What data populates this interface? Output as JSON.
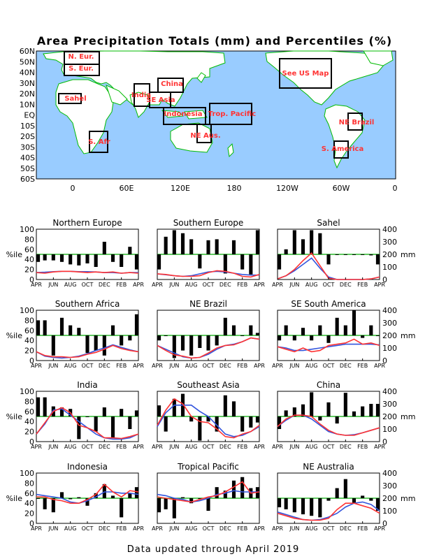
{
  "title": "Area Precipitation Totals (mm) and Percentiles (%)",
  "footer": "Data updated through April 2019",
  "map": {
    "lat_labels": [
      "60N",
      "50N",
      "40N",
      "30N",
      "20N",
      "10N",
      "EQ",
      "10S",
      "20S",
      "30S",
      "40S",
      "50S",
      "60S"
    ],
    "lon_labels": [
      "0",
      "60E",
      "120E",
      "180",
      "120W",
      "60W",
      "0"
    ],
    "regions": [
      "N. Eur.",
      "S. Eur.",
      "Sahel",
      "S. Afr",
      "India",
      "China",
      "SE Asia",
      "Indonesia",
      "Trop. Pacific",
      "NE Aus.",
      "See US Map",
      "NE Brazil",
      "S. America"
    ],
    "colors": {
      "ocean": "#99ccff",
      "land": "#ffffff",
      "coast": "#00bb00",
      "box": "#000000",
      "label": "#ff3333"
    }
  },
  "chart_axis": {
    "months": [
      "APR",
      "JUN",
      "AUG",
      "OCT",
      "DEC",
      "FEB",
      "APR"
    ],
    "pct_ticks": [
      "0",
      "20",
      "40",
      "60",
      "80",
      "100"
    ],
    "mm_ticks": [
      "0",
      "100",
      "200",
      "300",
      "400"
    ],
    "pct_label": "%ile",
    "mm_label": "mm",
    "colors": {
      "bars": "#000000",
      "median_line": "#00aa00",
      "observed": "#ff3333",
      "normal": "#3355dd"
    }
  },
  "chart_data": [
    {
      "type": "bar",
      "title": "Northern Europe",
      "ylim": [
        0,
        100
      ],
      "y2lim": [
        0,
        400
      ],
      "percentile": [
        35,
        38,
        38,
        35,
        30,
        28,
        32,
        25,
        75,
        35,
        25,
        65,
        20
      ],
      "observed_mm": [
        55,
        50,
        60,
        65,
        65,
        60,
        55,
        60,
        55,
        60,
        50,
        55,
        50
      ],
      "normal_mm": [
        55,
        58,
        62,
        65,
        65,
        62,
        62,
        60,
        55,
        55,
        50,
        55,
        55
      ]
    },
    {
      "type": "bar",
      "title": "Southern Europe",
      "ylim": [
        0,
        100
      ],
      "y2lim": [
        0,
        400
      ],
      "percentile": [
        20,
        85,
        98,
        92,
        80,
        22,
        78,
        80,
        12,
        78,
        20,
        10,
        98
      ],
      "observed_mm": [
        45,
        40,
        30,
        25,
        25,
        30,
        55,
        70,
        65,
        50,
        25,
        20,
        40
      ],
      "normal_mm": [
        45,
        38,
        30,
        25,
        30,
        45,
        60,
        65,
        60,
        50,
        40,
        35,
        35
      ]
    },
    {
      "type": "bar",
      "title": "Sahel",
      "ylim": [
        0,
        100
      ],
      "y2lim": [
        0,
        400
      ],
      "percentile": [
        20,
        60,
        98,
        80,
        98,
        92,
        30,
        50,
        50,
        50,
        50,
        48,
        30
      ],
      "observed_mm": [
        5,
        30,
        80,
        150,
        210,
        110,
        10,
        0,
        0,
        0,
        0,
        5,
        20
      ],
      "normal_mm": [
        5,
        30,
        70,
        120,
        170,
        90,
        20,
        0,
        0,
        0,
        0,
        5,
        20
      ]
    },
    {
      "type": "bar",
      "title": "Southern Africa",
      "ylim": [
        0,
        100
      ],
      "y2lim": [
        0,
        400
      ],
      "percentile": [
        80,
        80,
        10,
        85,
        70,
        65,
        15,
        20,
        10,
        70,
        30,
        40,
        92
      ],
      "observed_mm": [
        70,
        40,
        30,
        30,
        25,
        30,
        50,
        65,
        90,
        120,
        95,
        80,
        70
      ],
      "normal_mm": [
        70,
        35,
        25,
        20,
        25,
        35,
        55,
        80,
        100,
        125,
        105,
        85,
        70
      ]
    },
    {
      "type": "bar",
      "title": "NE Brazil",
      "ylim": [
        0,
        100
      ],
      "y2lim": [
        0,
        400
      ],
      "percentile": [
        40,
        50,
        5,
        20,
        10,
        25,
        20,
        30,
        85,
        70,
        50,
        70,
        55
      ],
      "observed_mm": [
        120,
        80,
        45,
        35,
        20,
        25,
        60,
        100,
        120,
        125,
        150,
        180,
        170
      ],
      "normal_mm": [
        120,
        90,
        60,
        30,
        20,
        25,
        50,
        90,
        120,
        130,
        150,
        180,
        170
      ]
    },
    {
      "type": "bar",
      "title": "SE South America",
      "ylim": [
        0,
        100
      ],
      "y2lim": [
        0,
        400
      ],
      "percentile": [
        40,
        70,
        40,
        65,
        40,
        70,
        35,
        85,
        70,
        100,
        45,
        70,
        50
      ],
      "observed_mm": [
        110,
        90,
        70,
        100,
        70,
        80,
        120,
        130,
        140,
        170,
        130,
        140,
        120
      ],
      "normal_mm": [
        110,
        100,
        80,
        80,
        90,
        100,
        110,
        120,
        130,
        130,
        130,
        130,
        125
      ]
    },
    {
      "type": "bar",
      "title": "India",
      "ylim": [
        0,
        100
      ],
      "y2lim": [
        0,
        400
      ],
      "percentile": [
        88,
        88,
        70,
        68,
        65,
        5,
        50,
        20,
        68,
        8,
        65,
        25,
        62
      ],
      "observed_mm": [
        60,
        150,
        240,
        270,
        230,
        130,
        110,
        80,
        30,
        30,
        25,
        40,
        60
      ],
      "normal_mm": [
        60,
        140,
        250,
        260,
        210,
        160,
        110,
        60,
        30,
        20,
        20,
        30,
        60
      ]
    },
    {
      "type": "bar",
      "title": "Southeast Asia",
      "ylim": [
        0,
        100
      ],
      "y2lim": [
        0,
        400
      ],
      "percentile": [
        72,
        20,
        85,
        95,
        40,
        2,
        40,
        20,
        92,
        80,
        20,
        28,
        38
      ],
      "observed_mm": [
        130,
        250,
        340,
        300,
        200,
        160,
        150,
        100,
        40,
        30,
        60,
        80,
        130
      ],
      "normal_mm": [
        120,
        230,
        290,
        290,
        290,
        240,
        200,
        130,
        60,
        40,
        50,
        80,
        120
      ]
    },
    {
      "type": "bar",
      "title": "China",
      "ylim": [
        0,
        100
      ],
      "y2lim": [
        0,
        400
      ],
      "percentile": [
        25,
        62,
        68,
        74,
        98,
        42,
        78,
        36,
        97,
        60,
        70,
        75,
        75
      ],
      "observed_mm": [
        120,
        180,
        210,
        210,
        200,
        140,
        90,
        60,
        50,
        50,
        70,
        90,
        110
      ],
      "normal_mm": [
        120,
        170,
        210,
        210,
        180,
        130,
        80,
        60,
        50,
        55,
        70,
        90,
        110
      ]
    },
    {
      "type": "bar",
      "title": "Indonesia",
      "ylim": [
        0,
        100
      ],
      "y2lim": [
        0,
        400
      ],
      "percentile": [
        50,
        28,
        22,
        62,
        48,
        52,
        35,
        60,
        78,
        55,
        12,
        60,
        72
      ],
      "observed_mm": [
        210,
        210,
        190,
        180,
        160,
        160,
        190,
        230,
        310,
        250,
        210,
        260,
        250
      ],
      "normal_mm": [
        230,
        220,
        210,
        200,
        170,
        160,
        180,
        210,
        250,
        250,
        240,
        240,
        230
      ]
    },
    {
      "type": "bar",
      "title": "Tropical Pacific",
      "ylim": [
        0,
        100
      ],
      "y2lim": [
        0,
        400
      ],
      "percentile": [
        22,
        28,
        10,
        52,
        40,
        50,
        25,
        72,
        65,
        85,
        92,
        70,
        72
      ],
      "observed_mm": [
        210,
        200,
        190,
        180,
        170,
        190,
        210,
        220,
        250,
        290,
        330,
        240,
        250
      ],
      "normal_mm": [
        230,
        220,
        200,
        190,
        170,
        180,
        200,
        230,
        240,
        260,
        250,
        250,
        250
      ]
    },
    {
      "type": "bar",
      "title": "NE Australia",
      "ylim": [
        0,
        100
      ],
      "y2lim": [
        0,
        400
      ],
      "percentile": [
        32,
        28,
        22,
        18,
        15,
        12,
        45,
        70,
        88,
        40,
        55,
        45,
        25
      ],
      "observed_mm": [
        80,
        60,
        40,
        30,
        25,
        25,
        40,
        110,
        160,
        160,
        140,
        120,
        80
      ],
      "normal_mm": [
        90,
        70,
        50,
        30,
        25,
        30,
        50,
        80,
        130,
        160,
        170,
        150,
        100
      ]
    }
  ]
}
